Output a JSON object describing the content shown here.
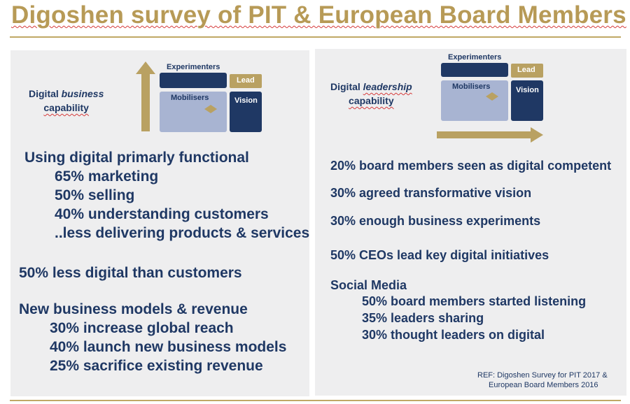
{
  "title": "Digoshen survey of PIT & European Board Members",
  "left": {
    "capability_prefix": "Digital ",
    "capability_emphasis": "business",
    "capability_suffix": "capability",
    "matrix": {
      "experimenters": "Experimenters",
      "lead": "Lead",
      "mobilisers": "Mobilisers",
      "vision": "Vision"
    },
    "items": [
      "Using digital primarly functional",
      "65% marketing",
      "50% selling",
      "40% understanding customers",
      "..less delivering products & services",
      "50% less digital than customers",
      "New business models & revenue",
      "30% increase global reach",
      "40% launch new business models",
      "25% sacrifice existing revenue"
    ]
  },
  "right": {
    "capability_prefix": "Digital ",
    "capability_emphasis": "leadership",
    "capability_suffix": "capability",
    "matrix": {
      "experimenters": "Experimenters",
      "lead": "Lead",
      "mobilisers": "Mobilisers",
      "vision": "Vision"
    },
    "items": [
      "20% board members seen as digital competent",
      "30% agreed transformative vision",
      "30% enough business experiments",
      "50% CEOs lead key digital initiatives",
      "Social Media",
      "50% board members started listening",
      "35% leaders sharing",
      "30% thought leaders on digital"
    ],
    "ref_line1": "REF: Digoshen Survey for PIT 2017 &",
    "ref_line2": "European Board Members 2016"
  },
  "colors": {
    "navy": "#1f3864",
    "gold": "#b79a56",
    "light_blue": "#a8b4d2",
    "panel": "#eeeeef"
  },
  "icons": {
    "up_arrow": "arrow-up-icon",
    "right_arrow": "arrow-right-icon",
    "small_arrow": "small-arrow-icon"
  }
}
